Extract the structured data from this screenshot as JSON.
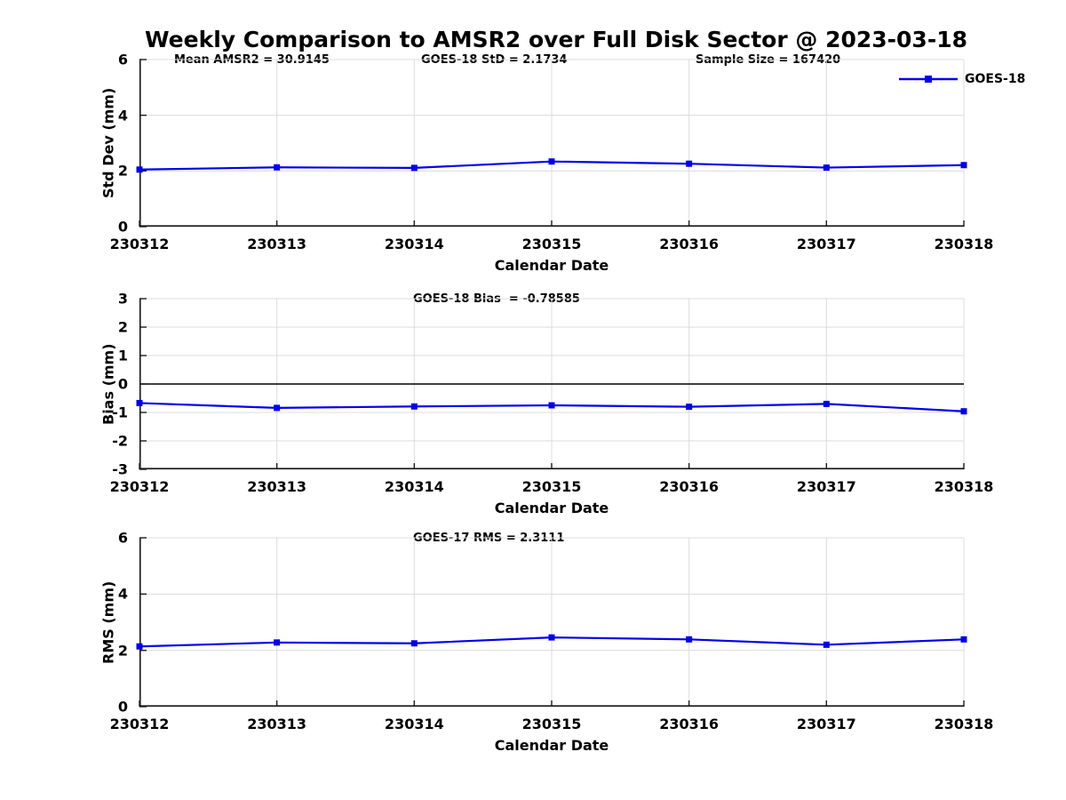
{
  "title": "Weekly Comparison to AMSR2 over Full Disk Sector @ 2023-03-18",
  "legend": {
    "label": "GOES-18"
  },
  "colors": {
    "line": "#0000EE",
    "grid": "#dcdcdc",
    "axis": "#1a1a1a",
    "zero_line": "#000000",
    "text": "#000000",
    "background": "#ffffff"
  },
  "x": {
    "categories": [
      "230312",
      "230313",
      "230314",
      "230315",
      "230316",
      "230317",
      "230318"
    ],
    "label": "Calendar Date"
  },
  "chart_data": [
    {
      "type": "line",
      "panel": "std-dev",
      "annotations": [
        "Mean AMSR2 = 30.9145",
        "GOES-18 StD = 2.1734",
        "Sample Size = 167420"
      ],
      "ylabel": "Std Dev (mm)",
      "ylim": [
        0,
        6
      ],
      "yticks": [
        6,
        4,
        2,
        0
      ],
      "grid": true,
      "legend_position": "top-right-outside",
      "categories": [
        "230312",
        "230313",
        "230314",
        "230315",
        "230316",
        "230317",
        "230318"
      ],
      "series": [
        {
          "name": "GOES-18",
          "values": [
            2.05,
            2.13,
            2.11,
            2.34,
            2.26,
            2.12,
            2.21
          ]
        }
      ]
    },
    {
      "type": "line",
      "panel": "bias",
      "annotations": [
        "GOES-18 Bias  = -0.78585"
      ],
      "ylabel": "Bias (mm)",
      "ylim": [
        -3,
        3
      ],
      "yticks": [
        3,
        2,
        1,
        0,
        -1,
        -2,
        -3
      ],
      "grid": true,
      "zero_line": true,
      "categories": [
        "230312",
        "230313",
        "230314",
        "230315",
        "230316",
        "230317",
        "230318"
      ],
      "series": [
        {
          "name": "GOES-18",
          "values": [
            -0.67,
            -0.84,
            -0.79,
            -0.75,
            -0.8,
            -0.7,
            -0.96
          ]
        }
      ]
    },
    {
      "type": "line",
      "panel": "rms",
      "annotations": [
        "GOES-17 RMS = 2.3111"
      ],
      "ylabel": "RMS (mm)",
      "ylim": [
        0,
        6
      ],
      "yticks": [
        6,
        4,
        2,
        0
      ],
      "grid": true,
      "categories": [
        "230312",
        "230313",
        "230314",
        "230315",
        "230316",
        "230317",
        "230318"
      ],
      "series": [
        {
          "name": "GOES-18",
          "values": [
            2.14,
            2.28,
            2.25,
            2.46,
            2.39,
            2.2,
            2.39
          ]
        }
      ]
    }
  ]
}
